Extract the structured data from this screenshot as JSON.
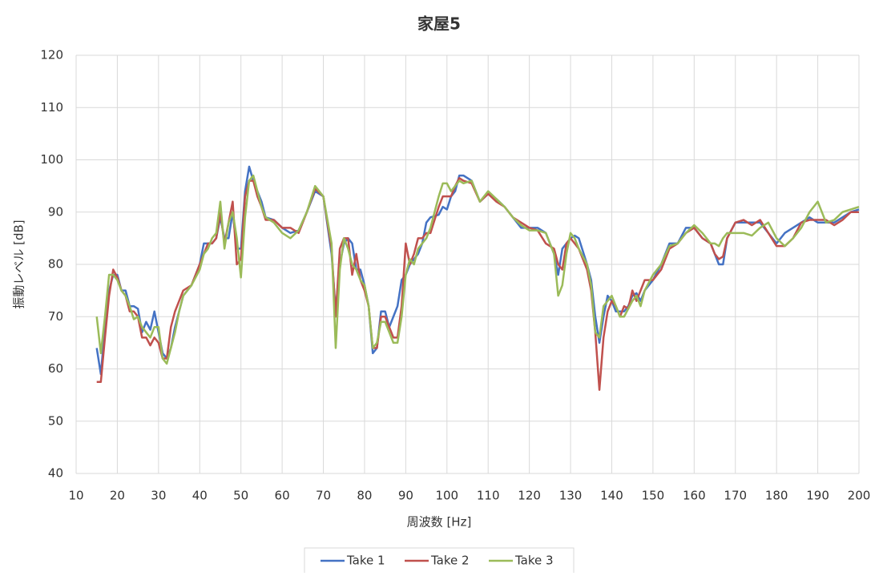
{
  "chart_data": {
    "type": "line",
    "title": "家屋5",
    "x_label": "周波数 [Hz]",
    "y_label": "振動レベル [dB]",
    "x": [
      15,
      16,
      17,
      18,
      19,
      20,
      21,
      22,
      23,
      24,
      25,
      26,
      27,
      28,
      29,
      30,
      31,
      32,
      33,
      34,
      35,
      36,
      38,
      40,
      41,
      42,
      43,
      44,
      45,
      46,
      47,
      48,
      49,
      50,
      51,
      52,
      53,
      54,
      55,
      56,
      58,
      60,
      62,
      64,
      66,
      68,
      70,
      72,
      73,
      74,
      75,
      76,
      77,
      78,
      79,
      80,
      81,
      82,
      83,
      84,
      85,
      86,
      87,
      88,
      89,
      90,
      91,
      92,
      93,
      94,
      95,
      96,
      98,
      99,
      100,
      101,
      102,
      103,
      104,
      106,
      108,
      110,
      112,
      114,
      116,
      118,
      120,
      122,
      124,
      126,
      127,
      128,
      129,
      130,
      131,
      132,
      134,
      135,
      136,
      137,
      138,
      139,
      140,
      141,
      142,
      143,
      144,
      145,
      146,
      147,
      148,
      150,
      152,
      154,
      156,
      158,
      160,
      162,
      164,
      165,
      166,
      167,
      168,
      170,
      172,
      174,
      176,
      178,
      180,
      182,
      184,
      186,
      188,
      190,
      192,
      194,
      196,
      198,
      200
    ],
    "series": [
      {
        "name": "Take 1",
        "color": "#4472c4",
        "values": [
          64,
          59,
          68,
          75,
          78,
          78,
          75,
          75,
          72,
          72,
          71.5,
          67,
          69,
          67.5,
          71,
          67,
          63,
          62,
          64,
          68,
          71,
          74,
          76,
          80,
          84,
          84,
          84,
          85,
          89,
          85,
          85,
          90,
          83,
          83,
          94,
          98.7,
          96,
          94,
          92,
          89,
          88.5,
          87,
          86,
          86.5,
          90,
          94,
          93,
          82,
          71,
          80,
          84,
          85,
          84,
          79,
          79,
          76,
          72,
          63,
          64,
          71,
          71,
          68,
          70,
          72,
          77,
          78,
          80,
          81,
          82,
          84,
          88,
          89,
          89.5,
          91,
          90.5,
          93,
          94,
          97,
          97,
          96,
          92,
          93.5,
          92.5,
          91,
          89,
          87,
          87,
          87,
          86,
          82,
          78,
          83,
          84,
          85,
          85.5,
          85,
          80,
          77,
          70,
          65,
          70,
          74,
          73,
          71,
          71,
          71,
          72,
          74,
          74.5,
          73,
          75,
          77,
          80,
          84,
          84,
          87,
          87,
          85,
          84,
          82,
          80,
          80,
          85,
          88,
          88,
          88,
          88,
          86,
          84,
          86,
          87,
          88,
          89,
          88,
          88,
          88,
          89,
          90,
          90.5
        ]
      },
      {
        "name": "Take 2",
        "color": "#c0504d",
        "values": [
          57.5,
          57.5,
          66,
          74,
          79,
          77.5,
          75,
          74,
          71,
          71,
          70,
          66,
          66,
          64.5,
          66,
          65,
          62,
          62,
          68,
          71,
          73,
          75,
          76,
          80,
          82,
          84,
          84,
          85,
          90,
          84,
          88,
          92,
          80,
          81,
          93,
          96,
          96,
          93,
          91,
          88.5,
          88.5,
          87,
          87,
          86,
          90,
          94.5,
          93,
          83,
          70,
          83,
          85,
          85,
          78,
          82,
          77,
          75,
          72,
          64,
          64,
          70,
          70,
          68,
          66,
          66,
          72,
          84,
          80,
          82,
          85,
          85,
          86,
          86,
          91,
          93,
          93,
          93,
          95,
          96.5,
          96,
          95.5,
          92,
          93.5,
          92,
          91,
          89,
          88,
          87,
          86.5,
          84,
          83,
          80,
          79,
          84,
          85,
          84,
          83,
          79,
          75,
          67,
          56,
          66,
          71,
          73,
          72,
          70,
          72,
          71.5,
          75,
          73,
          75,
          77,
          77,
          79,
          83,
          84,
          86,
          87,
          85,
          84,
          82,
          81,
          81.5,
          85,
          88,
          88.5,
          87.5,
          88.5,
          86,
          83.5,
          83.5,
          85,
          88,
          88.5,
          88.5,
          88.5,
          87.5,
          88.5,
          90,
          90
        ]
      },
      {
        "name": "Take 3",
        "color": "#9bbb59",
        "values": [
          70,
          63,
          70,
          78,
          78,
          77,
          75,
          74,
          72,
          69.5,
          70,
          68,
          67,
          66,
          68,
          68,
          62,
          61,
          64,
          67,
          71,
          74,
          76,
          79,
          82,
          83,
          85,
          86,
          92,
          83,
          88,
          90,
          85,
          77.5,
          89,
          96,
          97,
          94,
          91,
          89,
          88,
          86,
          85,
          86.5,
          90,
          95,
          93,
          84,
          64,
          79,
          85,
          83,
          80,
          79,
          77,
          76,
          72,
          64,
          65,
          69,
          69,
          67,
          65,
          65,
          70,
          78,
          81,
          80,
          83,
          84,
          85,
          87,
          93,
          95.5,
          95.5,
          94,
          95,
          96,
          95.5,
          96,
          92,
          94,
          92.5,
          91,
          89,
          87.5,
          86.5,
          86.5,
          86,
          82,
          74,
          76,
          82,
          86,
          85,
          83,
          80,
          76,
          67,
          66,
          72,
          73,
          74,
          72,
          70,
          70,
          71.5,
          73,
          74,
          72,
          75,
          78,
          80,
          83.5,
          84,
          86,
          87.5,
          86,
          84,
          84,
          83.5,
          85,
          86,
          86,
          86,
          85.5,
          87,
          88,
          85,
          83.5,
          85,
          87,
          90,
          92,
          88,
          88.5,
          90,
          90.5,
          91
        ]
      }
    ],
    "xlim": [
      10,
      200
    ],
    "xticks": [
      10,
      20,
      30,
      40,
      50,
      60,
      70,
      80,
      90,
      100,
      110,
      120,
      130,
      140,
      150,
      160,
      170,
      180,
      190,
      200
    ],
    "ylim": [
      40,
      120
    ],
    "yticks": [
      40,
      50,
      60,
      70,
      80,
      90,
      100,
      110,
      120
    ],
    "grid": true
  }
}
